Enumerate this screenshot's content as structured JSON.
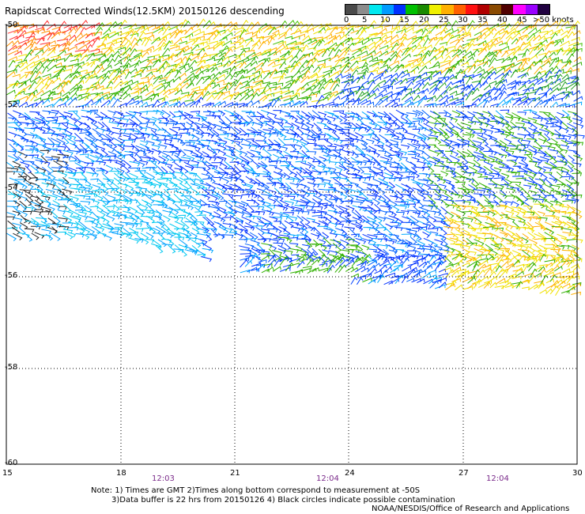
{
  "title": "Rapidscat Corrected Winds(12.5KM) 20150126 descending",
  "legend": {
    "labels": [
      "0",
      "5",
      "10",
      "15",
      "20",
      "25",
      "30",
      "35",
      "40",
      "45",
      ">50 knots"
    ],
    "colors": [
      "#4a4a4a",
      "#8c8c8c",
      "#00e8f0",
      "#009cff",
      "#0030ff",
      "#00c000",
      "#1a8a00",
      "#f0f000",
      "#ffb000",
      "#ff6000",
      "#ff1010",
      "#b00000",
      "#8a4a00",
      "#500000",
      "#ff00ff",
      "#9a00ff",
      "#200040"
    ]
  },
  "axes": {
    "lat_labels": [
      "-50",
      "-52",
      "-54",
      "-56",
      "-58",
      "-60"
    ],
    "lon_labels": [
      "15",
      "18",
      "21",
      "24",
      "27",
      "30"
    ],
    "time_labels": [
      "12:03",
      "12:04",
      "12:04"
    ]
  },
  "notes": {
    "line1": "Note: 1) Times are GMT 2)Times along bottom correspond to measurement at -50S",
    "line2": "3)Data buffer is 22 hrs from 20150126 4) Black circles indicate possible contamination",
    "line3": "NOAA/NESDIS/Office of Research and Applications"
  }
}
